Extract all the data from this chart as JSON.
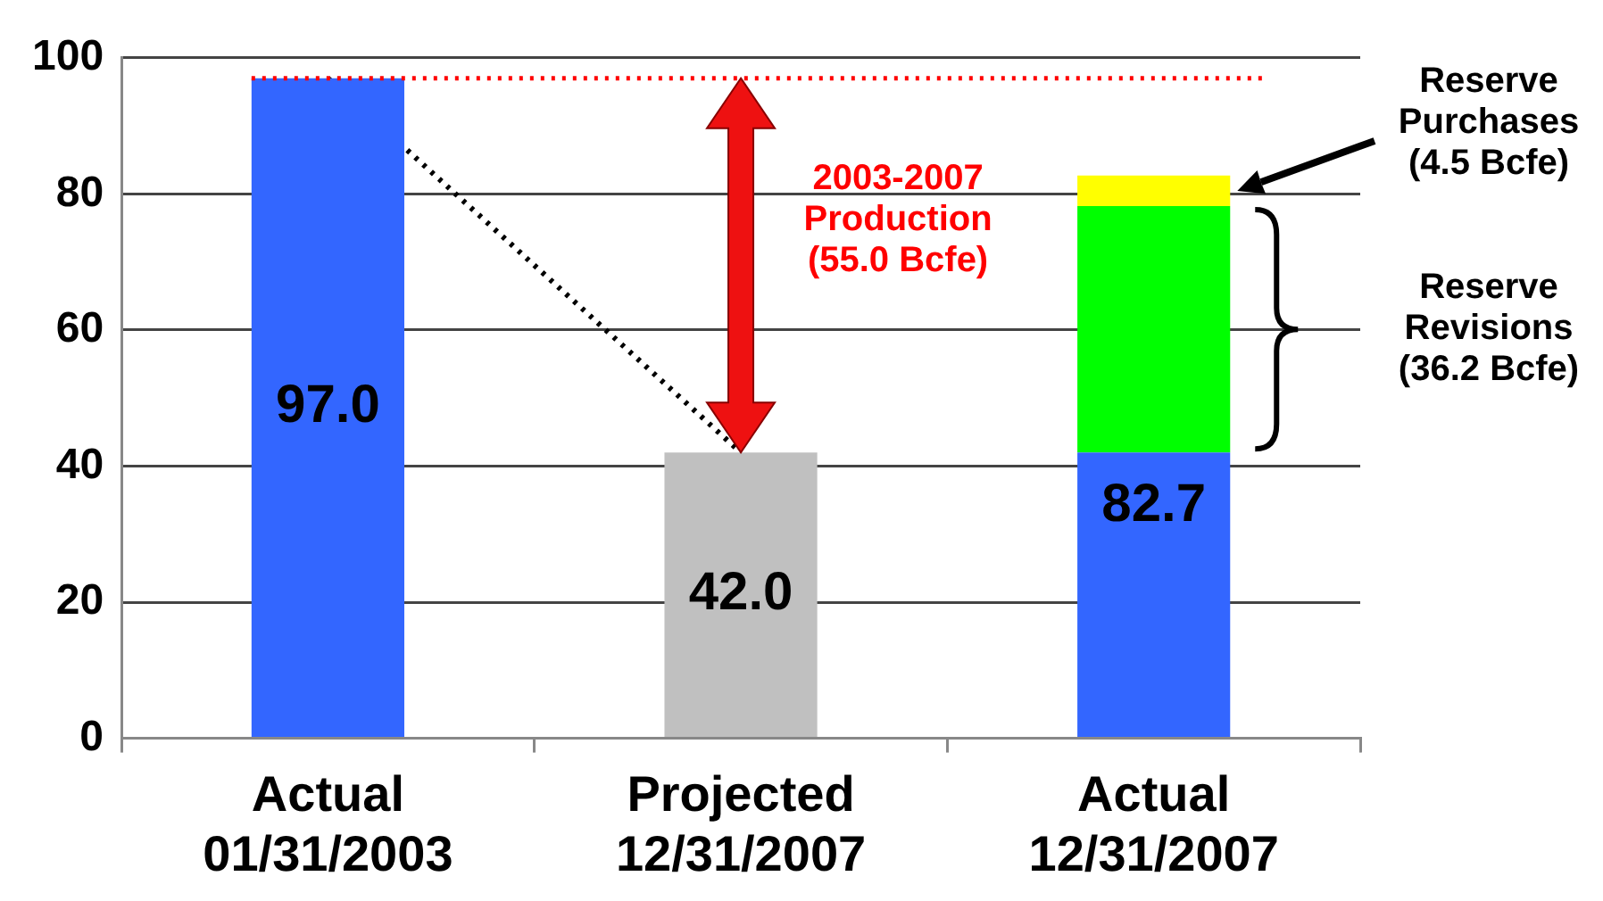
{
  "chart_data": {
    "type": "bar",
    "stacked": true,
    "categories": [
      "Actual\n01/31/2003",
      "Projected\n12/31/2007",
      "Actual\n12/31/2007"
    ],
    "series": [
      {
        "color": "#3366ff",
        "values": [
          97.0,
          null,
          42.0
        ],
        "value_labels": [
          "97.0",
          null,
          null
        ]
      },
      {
        "color": "#c0c0c0",
        "values": [
          null,
          42.0,
          null
        ],
        "value_labels": [
          null,
          "42.0",
          null
        ]
      },
      {
        "color": "#00ff00",
        "values": [
          null,
          null,
          36.2
        ]
      },
      {
        "color": "#ffff00",
        "values": [
          null,
          null,
          4.5
        ]
      },
      {
        "type": "line",
        "color": "#000000",
        "values": [
          97.0,
          42.0,
          null
        ],
        "line_style": "dotted",
        "marker": "none"
      }
    ],
    "totals": [
      null,
      null,
      "82.7"
    ],
    "ylim": [
      0,
      100
    ],
    "yticks": [
      0,
      20,
      40,
      60,
      80,
      100
    ],
    "grid": "y",
    "legend": false,
    "ref_lines": [
      {
        "axis": "y",
        "value": 97,
        "color": "#ff0000",
        "line_style": "dotted"
      }
    ],
    "annotations": [
      "2003-2007\nProduction\n(55.0 Bcfe)",
      "Reserve\nPurchases\n(4.5 Bcfe)",
      "Reserve\nRevisions\n(36.2 Bcfe)"
    ]
  }
}
